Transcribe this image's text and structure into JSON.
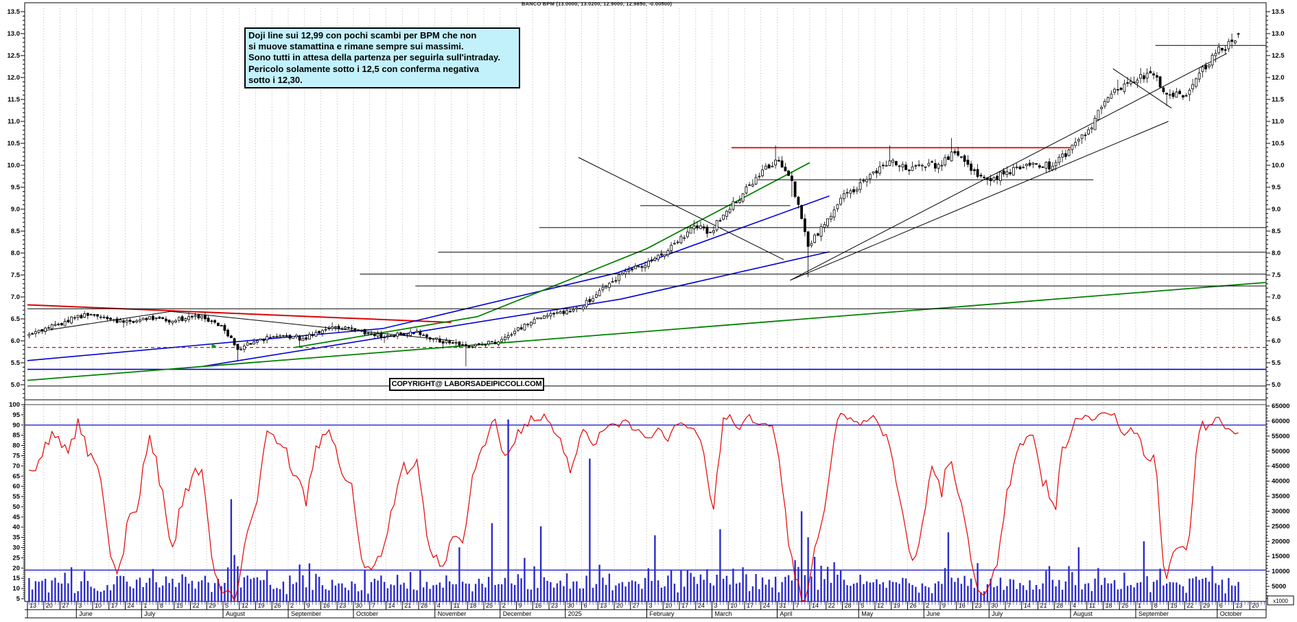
{
  "title": "BANCO BPM (13.0000, 13.0200, 12.9000, 12.9850, -0.00500)",
  "annotation": {
    "lines": [
      "Doji line sui 12,99 con pochi scambi per BPM che non",
      "si muove stamattina e rimane sempre sui massimi.",
      "Sono tutti in attesa della partenza per seguirla sull'intraday.",
      "Pericolo solamente sotto i 12,5 con conferma negativa",
      "sotto i 12,30."
    ]
  },
  "copyright": "COPYRIGHT@ LABORSADEIPICCOLI.COM",
  "y_axis_price": {
    "labels": [
      "13.5",
      "13.0",
      "12.5",
      "12.0",
      "11.5",
      "11.0",
      "10.5",
      "10.0",
      "9.5",
      "9.0",
      "8.5",
      "8.0",
      "7.5",
      "7.0",
      "6.5",
      "6.0",
      "5.5",
      "5.0"
    ]
  },
  "y_axis_oscillator": {
    "labels": [
      "100",
      "95",
      "90",
      "85",
      "80",
      "75",
      "70",
      "65",
      "60",
      "55",
      "50",
      "45",
      "40",
      "35",
      "30",
      "25",
      "20",
      "15",
      "10",
      "5"
    ]
  },
  "y_axis_volume": {
    "labels": [
      "65000",
      "60000",
      "55000",
      "50000",
      "45000",
      "40000",
      "35000",
      "30000",
      "25000",
      "20000",
      "15000",
      "10000",
      "5000"
    ],
    "unit": "x1000"
  },
  "x_axis": {
    "months": [
      {
        "label": "",
        "weeks": [
          "13",
          "20",
          "27"
        ]
      },
      {
        "label": "June",
        "weeks": [
          "3",
          "10",
          "17",
          "24"
        ]
      },
      {
        "label": "July",
        "weeks": [
          "1",
          "8",
          "15",
          "22",
          "29"
        ]
      },
      {
        "label": "August",
        "weeks": [
          "5",
          "12",
          "19",
          "26"
        ]
      },
      {
        "label": "September",
        "weeks": [
          "2",
          "9",
          "16",
          "23"
        ]
      },
      {
        "label": "October",
        "weeks": [
          "30",
          "7",
          "14",
          "21",
          "28"
        ]
      },
      {
        "label": "November",
        "weeks": [
          "4",
          "11",
          "18",
          "25"
        ]
      },
      {
        "label": "December",
        "weeks": [
          "2",
          "9",
          "16",
          "23"
        ]
      },
      {
        "label": "2025",
        "weeks": [
          "30",
          "6",
          "13",
          "20",
          "27"
        ]
      },
      {
        "label": "February",
        "weeks": [
          "3",
          "10",
          "17",
          "24"
        ]
      },
      {
        "label": "March",
        "weeks": [
          "3",
          "10",
          "17",
          "24"
        ]
      },
      {
        "label": "April",
        "weeks": [
          "31",
          "7",
          "14",
          "22",
          "28"
        ]
      },
      {
        "label": "May",
        "weeks": [
          "5",
          "12",
          "19",
          "26"
        ]
      },
      {
        "label": "June",
        "weeks": [
          "2",
          "9",
          "16",
          "23"
        ]
      },
      {
        "label": "July",
        "weeks": [
          "30",
          "7",
          "14",
          "21",
          "28"
        ]
      },
      {
        "label": "August",
        "weeks": [
          "4",
          "11",
          "18",
          "25"
        ]
      },
      {
        "label": "September",
        "weeks": [
          "1",
          "8",
          "15",
          "22",
          "29"
        ]
      },
      {
        "label": "October",
        "weeks": [
          "6",
          "13",
          "20"
        ]
      }
    ]
  },
  "chart_data": {
    "type": "candlestick",
    "instrument": "BANCO BPM",
    "interval": "daily",
    "price_range": [
      4.65,
      13.7
    ],
    "weeks_total": 76,
    "start_price": 6.1,
    "weekly": [
      {
        "d": "May 13",
        "c": 6.22
      },
      {
        "d": "May 20",
        "c": 6.38
      },
      {
        "d": "May 27",
        "c": 6.52
      },
      {
        "d": "Jun 3",
        "c": 6.6,
        "h": 6.68
      },
      {
        "d": "Jun 10",
        "c": 6.5
      },
      {
        "d": "Jun 17",
        "c": 6.42,
        "l": 6.3
      },
      {
        "d": "Jun 24",
        "c": 6.48
      },
      {
        "d": "Jul 1",
        "c": 6.52
      },
      {
        "d": "Jul 8",
        "c": 6.45
      },
      {
        "d": "Jul 15",
        "c": 6.55,
        "h": 6.65
      },
      {
        "d": "Jul 22",
        "c": 6.5
      },
      {
        "d": "Jul 29",
        "c": 6.35
      },
      {
        "d": "Aug 5",
        "c": 5.8,
        "l": 5.53,
        "v": 34000
      },
      {
        "d": "Aug 12",
        "c": 5.98
      },
      {
        "d": "Aug 19",
        "c": 6.08
      },
      {
        "d": "Aug 26",
        "c": 6.12
      },
      {
        "d": "Sep 2",
        "c": 6.05,
        "l": 5.88
      },
      {
        "d": "Sep 9",
        "c": 6.18
      },
      {
        "d": "Sep 16",
        "c": 6.32,
        "h": 6.42
      },
      {
        "d": "Sep 23",
        "c": 6.28
      },
      {
        "d": "Sep 30",
        "c": 6.18
      },
      {
        "d": "Oct 7",
        "c": 6.08,
        "l": 5.95
      },
      {
        "d": "Oct 14",
        "c": 6.15
      },
      {
        "d": "Oct 21",
        "c": 6.22
      },
      {
        "d": "Oct 28",
        "c": 6.05
      },
      {
        "d": "Nov 4",
        "c": 5.95,
        "l": 5.82
      },
      {
        "d": "Nov 11",
        "c": 5.88,
        "l": 5.42,
        "v": 18000
      },
      {
        "d": "Nov 18",
        "c": 5.92
      },
      {
        "d": "Nov 25",
        "c": 5.98,
        "v": 26000
      },
      {
        "d": "Dec 2",
        "c": 6.22,
        "v": 60500
      },
      {
        "d": "Dec 9",
        "c": 6.42
      },
      {
        "d": "Dec 16",
        "c": 6.58,
        "v": 25000
      },
      {
        "d": "Dec 23",
        "c": 6.62
      },
      {
        "d": "Dec 30",
        "c": 6.74
      },
      {
        "d": "Jan 6",
        "c": 7.05,
        "v": 47500
      },
      {
        "d": "Jan 13",
        "c": 7.35
      },
      {
        "d": "Jan 20",
        "c": 7.62
      },
      {
        "d": "Jan 27",
        "c": 7.72
      },
      {
        "d": "Feb 3",
        "c": 7.95,
        "v": 22000
      },
      {
        "d": "Feb 10",
        "c": 8.25
      },
      {
        "d": "Feb 17",
        "c": 8.62,
        "h": 8.75
      },
      {
        "d": "Feb 24",
        "c": 8.48
      },
      {
        "d": "Mar 3",
        "c": 8.95,
        "v": 24000
      },
      {
        "d": "Mar 10",
        "c": 9.35
      },
      {
        "d": "Mar 17",
        "c": 9.75
      },
      {
        "d": "Mar 24",
        "c": 10.12,
        "h": 10.45
      },
      {
        "d": "Mar 31",
        "c": 9.65,
        "l": 9.28
      },
      {
        "d": "Apr 7",
        "c": 8.15,
        "l": 7.45,
        "h": 9.5,
        "v": 30000
      },
      {
        "d": "Apr 14",
        "c": 8.65
      },
      {
        "d": "Apr 22",
        "c": 9.25
      },
      {
        "d": "Apr 28",
        "c": 9.45
      },
      {
        "d": "May 5",
        "c": 9.85
      },
      {
        "d": "May 12",
        "c": 10.1,
        "h": 10.45
      },
      {
        "d": "May 19",
        "c": 9.9
      },
      {
        "d": "May 26",
        "c": 10.0
      },
      {
        "d": "Jun 2",
        "c": 10.02
      },
      {
        "d": "Jun 9",
        "c": 10.28,
        "h": 10.62,
        "v": 23000
      },
      {
        "d": "Jun 16",
        "c": 9.88
      },
      {
        "d": "Jun 23",
        "c": 9.68,
        "l": 9.55
      },
      {
        "d": "Jun 30",
        "c": 9.8
      },
      {
        "d": "Jul 7",
        "c": 9.92
      },
      {
        "d": "Jul 14",
        "c": 10.02
      },
      {
        "d": "Jul 21",
        "c": 9.98
      },
      {
        "d": "Jul 28",
        "c": 10.35
      },
      {
        "d": "Aug 4",
        "c": 10.68,
        "v": 18000
      },
      {
        "d": "Aug 11",
        "c": 11.32
      },
      {
        "d": "Aug 18",
        "c": 11.72,
        "h": 11.95
      },
      {
        "d": "Aug 25",
        "c": 11.9
      },
      {
        "d": "Sep 1",
        "c": 12.1,
        "h": 12.25,
        "v": 20000
      },
      {
        "d": "Sep 8",
        "c": 11.62,
        "l": 11.35
      },
      {
        "d": "Sep 15",
        "c": 11.55
      },
      {
        "d": "Sep 22",
        "c": 12.1
      },
      {
        "d": "Sep 29",
        "c": 12.55
      },
      {
        "d": "Oct 6",
        "c": 12.82,
        "h": 13.0
      },
      {
        "d": "Oct 13",
        "c": 12.985,
        "h": 13.05,
        "days": 2
      }
    ],
    "last_candle": {
      "o": 13.0,
      "h": 13.02,
      "l": 12.9,
      "c": 12.985,
      "chg": -0.005
    },
    "indicator": {
      "name": "oscillator",
      "color": "#e60000",
      "window": 10,
      "smooth": 3,
      "guides": [
        90,
        19
      ],
      "guide_color": "#2020d0",
      "range": [
        5,
        100
      ]
    },
    "volume": {
      "color": "#2b2bc8",
      "axis_max": 65000,
      "unit": "x1000"
    },
    "candle_colors": {
      "up_fill": "#ffffff",
      "down_fill": "#000000",
      "outline": "#000000"
    },
    "marker": {
      "type": "arrow-right",
      "color": "#00a000",
      "day": 58,
      "price": 5.88
    },
    "trendlines": [
      {
        "color": "#dd0000",
        "width": 2,
        "pts": [
          [
            0,
            6.82
          ],
          [
            130,
            6.42
          ]
        ]
      },
      {
        "color": "#dd0000",
        "width": 1.2,
        "dash": "5,4",
        "pts": [
          [
            0,
            5.85
          ],
          [
            380,
            5.85
          ]
        ]
      },
      {
        "color": "#dd0000",
        "width": 1.8,
        "pts": [
          [
            216,
            10.4
          ],
          [
            320,
            10.4
          ]
        ]
      },
      {
        "color": "#0000d0",
        "width": 1.6,
        "pts": [
          [
            0,
            5.35
          ],
          [
            380,
            5.35
          ]
        ]
      },
      {
        "color": "#0000d0",
        "width": 1.6,
        "pts": [
          [
            0,
            5.55
          ],
          [
            109,
            6.28
          ],
          [
            181,
            7.55
          ],
          [
            246,
            9.3
          ]
        ]
      },
      {
        "color": "#0000d0",
        "width": 1.6,
        "pts": [
          [
            54,
            5.42
          ],
          [
            182,
            6.95
          ],
          [
            246,
            8.03
          ]
        ]
      },
      {
        "color": "#008000",
        "width": 1.8,
        "pts": [
          [
            0,
            5.1
          ],
          [
            380,
            7.33
          ]
        ]
      },
      {
        "color": "#008000",
        "width": 1.8,
        "pts": [
          [
            82,
            5.85
          ],
          [
            138,
            6.55
          ],
          [
            190,
            8.1
          ],
          [
            240,
            10.06
          ]
        ]
      },
      {
        "color": "#000000",
        "width": 1,
        "pts": [
          [
            4,
            6.22
          ],
          [
            44,
            6.67
          ]
        ]
      },
      {
        "color": "#000000",
        "width": 1,
        "pts": [
          [
            44,
            6.67
          ],
          [
            131,
            6.0
          ]
        ]
      },
      {
        "color": "#000000",
        "width": 1,
        "pts": [
          [
            169,
            10.18
          ],
          [
            232,
            7.85
          ]
        ]
      },
      {
        "color": "#000000",
        "width": 1,
        "pts": [
          [
            234,
            7.38
          ],
          [
            368,
            12.55
          ]
        ]
      },
      {
        "color": "#000000",
        "width": 1,
        "pts": [
          [
            234,
            7.38
          ],
          [
            350,
            11.0
          ]
        ]
      },
      {
        "color": "#000000",
        "width": 1,
        "pts": [
          [
            333,
            12.2
          ],
          [
            351,
            11.3
          ]
        ]
      },
      {
        "color": "#000000",
        "width": 1,
        "pts": [
          [
            0,
            6.73
          ],
          [
            380,
            6.73
          ]
        ]
      },
      {
        "color": "#000000",
        "width": 1,
        "pts": [
          [
            0,
            4.97
          ],
          [
            380,
            4.97
          ]
        ]
      },
      {
        "color": "#000000",
        "width": 1,
        "pts": [
          [
            102,
            7.52
          ],
          [
            380,
            7.52
          ]
        ]
      },
      {
        "color": "#000000",
        "width": 1,
        "pts": [
          [
            119,
            7.25
          ],
          [
            380,
            7.25
          ]
        ]
      },
      {
        "color": "#000000",
        "width": 1,
        "pts": [
          [
            126,
            8.02
          ],
          [
            380,
            8.02
          ]
        ]
      },
      {
        "color": "#000000",
        "width": 1,
        "pts": [
          [
            157,
            8.58
          ],
          [
            380,
            8.58
          ]
        ]
      },
      {
        "color": "#000000",
        "width": 1,
        "pts": [
          [
            188,
            9.08
          ],
          [
            234,
            9.08
          ]
        ]
      },
      {
        "color": "#000000",
        "width": 1,
        "pts": [
          [
            224,
            9.67
          ],
          [
            327,
            9.67
          ]
        ]
      },
      {
        "color": "#000000",
        "width": 1,
        "pts": [
          [
            346,
            12.73
          ],
          [
            380,
            12.73
          ]
        ]
      }
    ]
  }
}
